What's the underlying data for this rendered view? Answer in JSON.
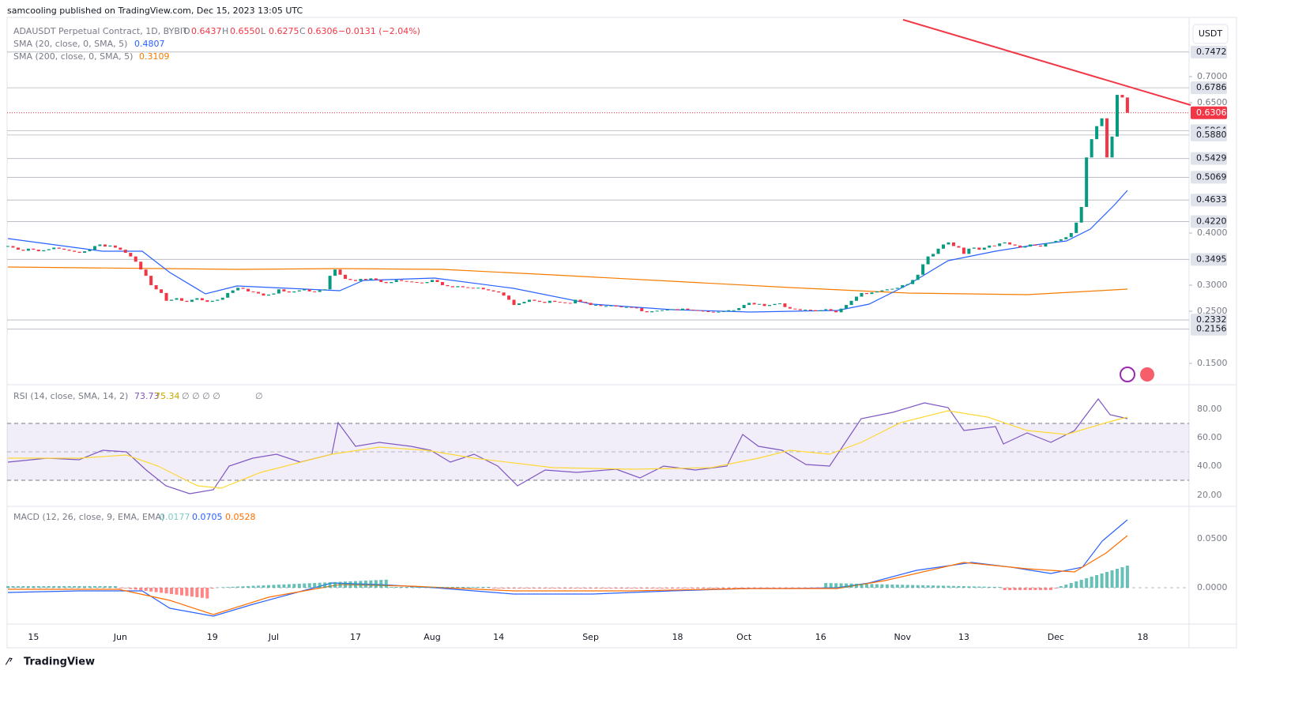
{
  "header": {
    "publisher": "samcooling published on TradingView.com, Dec 15, 2023 13:05 UTC"
  },
  "legend": {
    "symbol": "ADAUSDT Perpetual Contract, 1D, BYBIT",
    "ohlc": [
      {
        "key": "O",
        "value": "0.6437"
      },
      {
        "key": "H",
        "value": "0.6550"
      },
      {
        "key": "L",
        "value": "0.6275"
      },
      {
        "key": "C",
        "value": "0.6306"
      }
    ],
    "change": "−0.0131 (−2.04%)",
    "sma20": {
      "label": "SMA (20, close, 0, SMA, 5)",
      "value": "0.4807"
    },
    "sma200": {
      "label": "SMA (200, close, 0, SMA, 5)",
      "value": "0.3109"
    }
  },
  "currency": "USDT",
  "chart_data": {
    "type": "candlestick",
    "up_color": "#089981",
    "down_color": "#f23645",
    "values": [
      0.375,
      0.372,
      0.368,
      0.366,
      0.37,
      0.368,
      0.365,
      0.367,
      0.369,
      0.372,
      0.37,
      0.368,
      0.366,
      0.364,
      0.362,
      0.365,
      0.368,
      0.375,
      0.378,
      0.374,
      0.376,
      0.372,
      0.368,
      0.362,
      0.355,
      0.345,
      0.33,
      0.318,
      0.3,
      0.292,
      0.285,
      0.27,
      0.272,
      0.275,
      0.27,
      0.268,
      0.272,
      0.275,
      0.271,
      0.268,
      0.27,
      0.272,
      0.276,
      0.285,
      0.29,
      0.295,
      0.293,
      0.288,
      0.287,
      0.284,
      0.28,
      0.282,
      0.284,
      0.292,
      0.288,
      0.286,
      0.288,
      0.29,
      0.292,
      0.288,
      0.287,
      0.29,
      0.292,
      0.318,
      0.33,
      0.32,
      0.312,
      0.31,
      0.308,
      0.312,
      0.31,
      0.313,
      0.31,
      0.306,
      0.304,
      0.306,
      0.31,
      0.308,
      0.307,
      0.306,
      0.305,
      0.304,
      0.306,
      0.31,
      0.306,
      0.3,
      0.298,
      0.296,
      0.298,
      0.296,
      0.295,
      0.294,
      0.295,
      0.292,
      0.29,
      0.288,
      0.286,
      0.28,
      0.272,
      0.262,
      0.265,
      0.268,
      0.272,
      0.27,
      0.268,
      0.266,
      0.27,
      0.268,
      0.267,
      0.266,
      0.265,
      0.272,
      0.268,
      0.266,
      0.262,
      0.262,
      0.26,
      0.26,
      0.261,
      0.259,
      0.258,
      0.258,
      0.257,
      0.256,
      0.25,
      0.248,
      0.25,
      0.251,
      0.252,
      0.253,
      0.254,
      0.252,
      0.255,
      0.253,
      0.252,
      0.251,
      0.25,
      0.249,
      0.248,
      0.249,
      0.25,
      0.252,
      0.252,
      0.256,
      0.262,
      0.266,
      0.263,
      0.264,
      0.26,
      0.262,
      0.264,
      0.265,
      0.258,
      0.255,
      0.254,
      0.252,
      0.253,
      0.252,
      0.25,
      0.252,
      0.254,
      0.251,
      0.248,
      0.255,
      0.262,
      0.27,
      0.278,
      0.285,
      0.283,
      0.286,
      0.288,
      0.29,
      0.292,
      0.293,
      0.295,
      0.3,
      0.302,
      0.31,
      0.32,
      0.34,
      0.355,
      0.36,
      0.37,
      0.378,
      0.382,
      0.375,
      0.372,
      0.36,
      0.37,
      0.372,
      0.368,
      0.372,
      0.376,
      0.375,
      0.38,
      0.382,
      0.378,
      0.376,
      0.372,
      0.374,
      0.378,
      0.376,
      0.374,
      0.38,
      0.382,
      0.385,
      0.388,
      0.392,
      0.4,
      0.42,
      0.45,
      0.545,
      0.58,
      0.605,
      0.62,
      0.545,
      0.585,
      0.665,
      0.66,
      0.6306
    ],
    "ylim": [
      0.1121,
      0.8136
    ],
    "yticks": [
      {
        "value": 0.7,
        "label": "0.7000"
      },
      {
        "value": 0.65,
        "label": "0.6500"
      },
      {
        "value": 0.4,
        "label": "0.4000"
      },
      {
        "value": 0.3,
        "label": "0.3000"
      },
      {
        "value": 0.25,
        "label": "0.2500"
      },
      {
        "value": 0.15,
        "label": "0.1500"
      }
    ],
    "levels": [
      {
        "value": 0.7472,
        "label": "0.7472"
      },
      {
        "value": 0.6786,
        "label": "0.6786"
      },
      {
        "value": 0.5964,
        "label": "0.5964"
      },
      {
        "value": 0.588,
        "label": "0.5880"
      },
      {
        "value": 0.5429,
        "label": "0.5429"
      },
      {
        "value": 0.5069,
        "label": "0.5069"
      },
      {
        "value": 0.4633,
        "label": "0.4633"
      },
      {
        "value": 0.422,
        "label": "0.4220"
      },
      {
        "value": 0.3495,
        "label": "0.3495"
      },
      {
        "value": 0.2332,
        "label": "0.2332"
      },
      {
        "value": 0.2156,
        "label": "0.2156"
      }
    ],
    "last": {
      "value": 0.6306,
      "label": "0.6306"
    },
    "xtick_labels": [
      "15",
      "Jun",
      "19",
      "Jul",
      "17",
      "Aug",
      "14",
      "Sep",
      "18",
      "Oct",
      "16",
      "Nov",
      "13",
      "Dec",
      "18"
    ]
  },
  "rsi": {
    "label": "RSI (14, close, SMA, 14, 2)",
    "value": "73.73",
    "ma": "75.34",
    "empty": "∅ ∅ ∅ ∅",
    "empty2": "∅",
    "yticks": [
      "80.00",
      "60.00",
      "40.00",
      "20.00"
    ]
  },
  "macd": {
    "label": "MACD (12, 26, close, 9, EMA, EMA)",
    "histogram": "0.0177",
    "macd": "0.0705",
    "signal": "0.0528",
    "yticks": [
      "0.0500",
      "0.0000"
    ]
  },
  "footer": "TradingView"
}
